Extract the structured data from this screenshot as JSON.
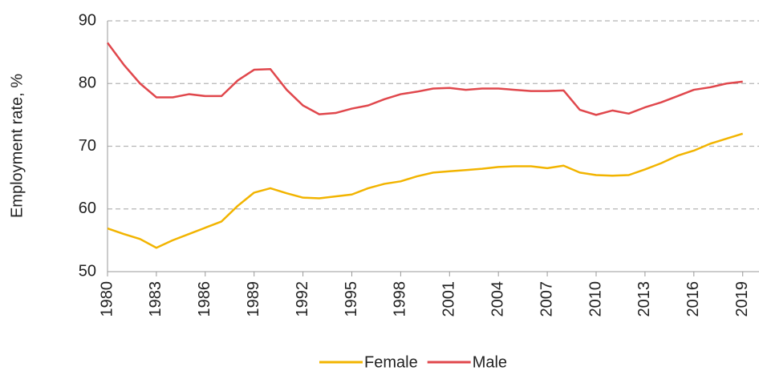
{
  "chart_data": {
    "type": "line",
    "y_label": "Employment rate, %",
    "x": [
      1980,
      1981,
      1982,
      1983,
      1984,
      1985,
      1986,
      1987,
      1988,
      1989,
      1990,
      1991,
      1992,
      1993,
      1994,
      1995,
      1996,
      1997,
      1998,
      1999,
      2000,
      2001,
      2002,
      2003,
      2004,
      2005,
      2006,
      2007,
      2008,
      2009,
      2010,
      2011,
      2012,
      2013,
      2014,
      2015,
      2016,
      2017,
      2018,
      2019
    ],
    "series": [
      {
        "name": "Female",
        "color": "#f2b400",
        "values": [
          56.9,
          56,
          55.2,
          53.8,
          55,
          56,
          57,
          58,
          60.5,
          62.6,
          63.3,
          62.5,
          61.8,
          61.7,
          62,
          62.3,
          63.3,
          64,
          64.4,
          65.2,
          65.8,
          66,
          66.2,
          66.4,
          66.7,
          66.8,
          66.8,
          66.5,
          66.9,
          65.8,
          65.4,
          65.3,
          65.4,
          66.3,
          67.3,
          68.5,
          69.3,
          70.4,
          71.2,
          72
        ]
      },
      {
        "name": "Male",
        "color": "#e0474c",
        "values": [
          86.5,
          83,
          80,
          77.8,
          77.8,
          78.3,
          78,
          78,
          80.5,
          82.2,
          82.3,
          79,
          76.5,
          75.1,
          75.3,
          76,
          76.5,
          77.5,
          78.3,
          78.7,
          79.2,
          79.3,
          79,
          79.2,
          79.2,
          79,
          78.8,
          78.8,
          78.9,
          75.8,
          75,
          75.7,
          75.2,
          76.2,
          77,
          78,
          79,
          79.4,
          80,
          80.3
        ]
      }
    ],
    "xlim": [
      1980,
      2020
    ],
    "xticks": [
      1980,
      1983,
      1986,
      1989,
      1992,
      1995,
      1998,
      2001,
      2004,
      2007,
      2010,
      2013,
      2016,
      2019
    ],
    "ylim": [
      50,
      90
    ],
    "yticks": [
      50,
      60,
      70,
      80,
      90
    ],
    "grid": true,
    "legend": "bottom"
  }
}
